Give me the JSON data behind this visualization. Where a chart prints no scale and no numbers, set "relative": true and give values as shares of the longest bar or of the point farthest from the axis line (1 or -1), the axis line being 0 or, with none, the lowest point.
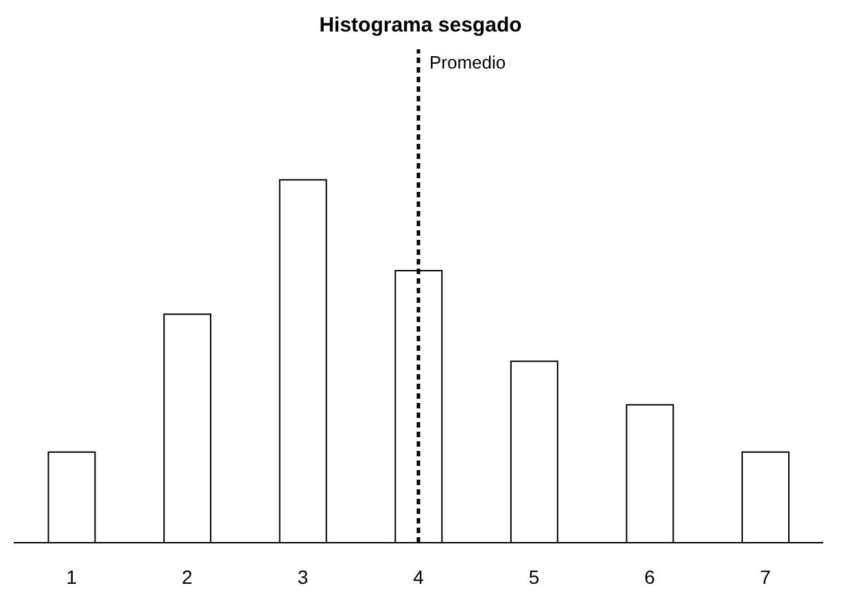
{
  "chart_data": {
    "type": "bar",
    "title": "Histograma sesgado",
    "categories": [
      "1",
      "2",
      "3",
      "4",
      "5",
      "6",
      "7"
    ],
    "values": [
      0.25,
      0.63,
      1,
      0.75,
      0.5,
      0.38,
      0.25
    ],
    "color": "#ffffff",
    "relative": true,
    "grid": false,
    "legend": false,
    "ref_lines": [
      {
        "axis": "x",
        "value": "4",
        "label": "Promedio",
        "line_style": "dashed",
        "color": "#000000"
      }
    ]
  }
}
